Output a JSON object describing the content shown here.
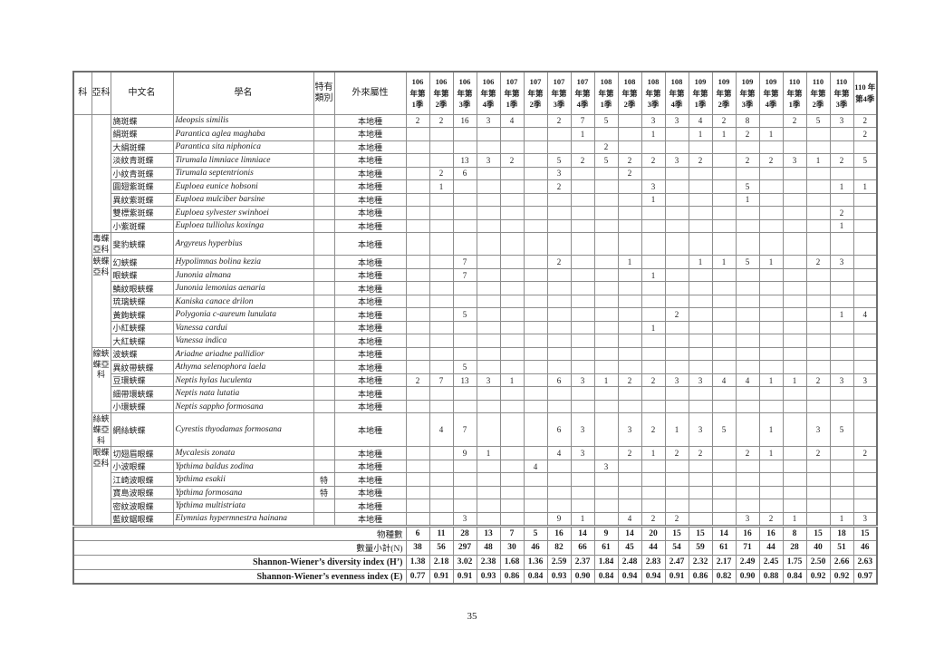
{
  "page_number": "35",
  "table": {
    "fixed_headers": [
      {
        "key": "family",
        "label": "科"
      },
      {
        "key": "subfamily",
        "label": "亞科"
      },
      {
        "key": "chinese-name",
        "label": "中文名"
      },
      {
        "key": "scientific-name",
        "label": "學名"
      },
      {
        "key": "endemic-category",
        "label": "特有\n類別"
      },
      {
        "key": "origin",
        "label": "外來屬性"
      }
    ],
    "quarter_headers": [
      "106\n年第\n1季",
      "106\n年第\n2季",
      "106\n年第\n3季",
      "106\n年第\n4季",
      "107\n年第\n1季",
      "107\n年第\n2季",
      "107\n年第\n3季",
      "107\n年第\n4季",
      "108\n年第\n1季",
      "108\n年第\n2季",
      "108\n年第\n3季",
      "108\n年第\n4季",
      "109\n年第\n1季",
      "109\n年第\n2季",
      "109\n年第\n3季",
      "109\n年第\n4季",
      "110\n年第\n1季",
      "110\n年第\n2季",
      "110\n年第\n3季",
      "110 年\n第4季"
    ],
    "family_label": "",
    "groups": [
      {
        "label": "",
        "span": 9
      },
      {
        "label": "毒蝶\n亞科",
        "span": 1
      },
      {
        "label": "蛺蝶\n亞科",
        "span": 7
      },
      {
        "label": "線蛺\n蝶亞\n科",
        "span": 5
      },
      {
        "label": "絲蛺\n蝶亞\n科",
        "span": 1
      },
      {
        "label": "眼蝶\n亞科",
        "span": 6
      }
    ],
    "species_rows": [
      {
        "cn": "旖斑蝶",
        "sci": "Ideopsis similis",
        "endemic": "",
        "origin": "本地種",
        "values": [
          "2",
          "2",
          "16",
          "3",
          "4",
          "",
          "2",
          "7",
          "5",
          "",
          "3",
          "3",
          "4",
          "2",
          "8",
          "",
          "2",
          "5",
          "3",
          "2"
        ]
      },
      {
        "cn": "絹斑蝶",
        "sci": "Parantica aglea maghaba",
        "endemic": "",
        "origin": "本地種",
        "values": [
          "",
          "",
          "",
          "",
          "",
          "",
          "",
          "1",
          "",
          "",
          "1",
          "",
          "1",
          "1",
          "2",
          "1",
          "",
          "",
          "",
          "2"
        ]
      },
      {
        "cn": "大絹斑蝶",
        "sci": "Parantica sita niphonica",
        "endemic": "",
        "origin": "本地種",
        "values": [
          "",
          "",
          "",
          "",
          "",
          "",
          "",
          "",
          "2",
          "",
          "",
          "",
          "",
          "",
          "",
          "",
          "",
          "",
          "",
          ""
        ]
      },
      {
        "cn": "淡紋青斑蝶",
        "sci": "Tirumala limniace limniace",
        "endemic": "",
        "origin": "本地種",
        "values": [
          "",
          "",
          "13",
          "3",
          "2",
          "",
          "5",
          "2",
          "5",
          "2",
          "2",
          "3",
          "2",
          "",
          "2",
          "2",
          "3",
          "1",
          "2",
          "5"
        ]
      },
      {
        "cn": "小紋青斑蝶",
        "sci": "Tirumala septentrionis",
        "endemic": "",
        "origin": "本地種",
        "values": [
          "",
          "2",
          "6",
          "",
          "",
          "",
          "3",
          "",
          "",
          "2",
          "",
          "",
          "",
          "",
          "",
          "",
          "",
          "",
          "",
          ""
        ]
      },
      {
        "cn": "圓翅紫斑蝶",
        "sci": "Euploea eunice hobsoni",
        "endemic": "",
        "origin": "本地種",
        "values": [
          "",
          "1",
          "",
          "",
          "",
          "",
          "2",
          "",
          "",
          "",
          "3",
          "",
          "",
          "",
          "5",
          "",
          "",
          "",
          "1",
          "1"
        ]
      },
      {
        "cn": "異紋紫斑蝶",
        "sci": "Euploea mulciber barsine",
        "endemic": "",
        "origin": "本地種",
        "values": [
          "",
          "",
          "",
          "",
          "",
          "",
          "",
          "",
          "",
          "",
          "1",
          "",
          "",
          "",
          "1",
          "",
          "",
          "",
          "",
          ""
        ]
      },
      {
        "cn": "雙標紫斑蝶",
        "sci": "Euploea sylvester swinhoei",
        "endemic": "",
        "origin": "本地種",
        "values": [
          "",
          "",
          "",
          "",
          "",
          "",
          "",
          "",
          "",
          "",
          "",
          "",
          "",
          "",
          "",
          "",
          "",
          "",
          "2",
          ""
        ]
      },
      {
        "cn": "小紫斑蝶",
        "sci": "Euploea tulliolus koxinga",
        "endemic": "",
        "origin": "本地種",
        "values": [
          "",
          "",
          "",
          "",
          "",
          "",
          "",
          "",
          "",
          "",
          "",
          "",
          "",
          "",
          "",
          "",
          "",
          "",
          "1",
          ""
        ]
      },
      {
        "cn": "斐豹蛺蝶",
        "sci": "Argyreus hyperbius",
        "endemic": "",
        "origin": "本地種",
        "values": [
          "",
          "",
          "",
          "",
          "",
          "",
          "",
          "",
          "",
          "",
          "",
          "",
          "",
          "",
          "",
          "",
          "",
          "",
          "",
          ""
        ]
      },
      {
        "cn": "幻蛺蝶",
        "sci": "Hypolimnas bolina kezia",
        "endemic": "",
        "origin": "本地種",
        "values": [
          "",
          "",
          "7",
          "",
          "",
          "",
          "2",
          "",
          "",
          "1",
          "",
          "",
          "1",
          "1",
          "5",
          "1",
          "",
          "2",
          "3",
          ""
        ]
      },
      {
        "cn": "眼蛺蝶",
        "sci": "Junonia almana",
        "endemic": "",
        "origin": "本地種",
        "values": [
          "",
          "",
          "7",
          "",
          "",
          "",
          "",
          "",
          "",
          "",
          "1",
          "",
          "",
          "",
          "",
          "",
          "",
          "",
          "",
          ""
        ]
      },
      {
        "cn": "鱗紋眼蛺蝶",
        "sci": "Junonia lemonias aenaria",
        "endemic": "",
        "origin": "本地種",
        "values": [
          "",
          "",
          "",
          "",
          "",
          "",
          "",
          "",
          "",
          "",
          "",
          "",
          "",
          "",
          "",
          "",
          "",
          "",
          "",
          ""
        ]
      },
      {
        "cn": "琉璃蛺蝶",
        "sci": "Kaniska canace drilon",
        "endemic": "",
        "origin": "本地種",
        "values": [
          "",
          "",
          "",
          "",
          "",
          "",
          "",
          "",
          "",
          "",
          "",
          "",
          "",
          "",
          "",
          "",
          "",
          "",
          "",
          ""
        ]
      },
      {
        "cn": "黃鉤蛺蝶",
        "sci": "Polygonia c-aureum lunulata",
        "endemic": "",
        "origin": "本地種",
        "values": [
          "",
          "",
          "5",
          "",
          "",
          "",
          "",
          "",
          "",
          "",
          "",
          "2",
          "",
          "",
          "",
          "",
          "",
          "",
          "1",
          "4"
        ]
      },
      {
        "cn": "小紅蛺蝶",
        "sci": "Vanessa cardui",
        "endemic": "",
        "origin": "本地種",
        "values": [
          "",
          "",
          "",
          "",
          "",
          "",
          "",
          "",
          "",
          "",
          "1",
          "",
          "",
          "",
          "",
          "",
          "",
          "",
          "",
          ""
        ]
      },
      {
        "cn": "大紅蛺蝶",
        "sci": "Vanessa indica",
        "endemic": "",
        "origin": "本地種",
        "values": [
          "",
          "",
          "",
          "",
          "",
          "",
          "",
          "",
          "",
          "",
          "",
          "",
          "",
          "",
          "",
          "",
          "",
          "",
          "",
          ""
        ]
      },
      {
        "cn": "波蛺蝶",
        "sci": "Ariadne ariadne pallidior",
        "endemic": "",
        "origin": "本地種",
        "values": [
          "",
          "",
          "",
          "",
          "",
          "",
          "",
          "",
          "",
          "",
          "",
          "",
          "",
          "",
          "",
          "",
          "",
          "",
          "",
          ""
        ]
      },
      {
        "cn": "異紋帶蛺蝶",
        "sci": "Athyma selenophora laela",
        "endemic": "",
        "origin": "本地種",
        "values": [
          "",
          "",
          "5",
          "",
          "",
          "",
          "",
          "",
          "",
          "",
          "",
          "",
          "",
          "",
          "",
          "",
          "",
          "",
          "",
          ""
        ]
      },
      {
        "cn": "豆環蛺蝶",
        "sci": "Neptis hylas luculenta",
        "endemic": "",
        "origin": "本地種",
        "values": [
          "2",
          "7",
          "13",
          "3",
          "1",
          "",
          "6",
          "3",
          "1",
          "2",
          "2",
          "3",
          "3",
          "4",
          "4",
          "1",
          "1",
          "2",
          "3",
          "3"
        ]
      },
      {
        "cn": "細帶環蛺蝶",
        "sci": "Neptis nata lutatia",
        "endemic": "",
        "origin": "本地種",
        "values": [
          "",
          "",
          "",
          "",
          "",
          "",
          "",
          "",
          "",
          "",
          "",
          "",
          "",
          "",
          "",
          "",
          "",
          "",
          "",
          ""
        ]
      },
      {
        "cn": "小環蛺蝶",
        "sci": "Neptis sappho formosana",
        "endemic": "",
        "origin": "本地種",
        "values": [
          "",
          "",
          "",
          "",
          "",
          "",
          "",
          "",
          "",
          "",
          "",
          "",
          "",
          "",
          "",
          "",
          "",
          "",
          "",
          ""
        ]
      },
      {
        "cn": "網絲蛺蝶",
        "sci": "Cyrestis thyodamas formosana",
        "endemic": "",
        "origin": "本地種",
        "values": [
          "",
          "4",
          "7",
          "",
          "",
          "",
          "6",
          "3",
          "",
          "3",
          "2",
          "1",
          "3",
          "5",
          "",
          "1",
          "",
          "3",
          "5",
          ""
        ]
      },
      {
        "cn": "切翅眉眼蝶",
        "sci": "Mycalesis zonata",
        "endemic": "",
        "origin": "本地種",
        "values": [
          "",
          "",
          "9",
          "1",
          "",
          "",
          "4",
          "3",
          "",
          "2",
          "1",
          "2",
          "2",
          "",
          "2",
          "1",
          "",
          "2",
          "",
          "2"
        ]
      },
      {
        "cn": "小波眼蝶",
        "sci": "Ypthima baldus zodina",
        "endemic": "",
        "origin": "本地種",
        "values": [
          "",
          "",
          "",
          "",
          "",
          "4",
          "",
          "",
          "3",
          "",
          "",
          "",
          "",
          "",
          "",
          "",
          "",
          "",
          "",
          ""
        ]
      },
      {
        "cn": "江崎波眼蝶",
        "sci": "Ypthima esakii",
        "endemic": "特",
        "origin": "本地種",
        "values": [
          "",
          "",
          "",
          "",
          "",
          "",
          "",
          "",
          "",
          "",
          "",
          "",
          "",
          "",
          "",
          "",
          "",
          "",
          "",
          ""
        ]
      },
      {
        "cn": "寶島波眼蝶",
        "sci": "Ypthima formosana",
        "endemic": "特",
        "origin": "本地種",
        "values": [
          "",
          "",
          "",
          "",
          "",
          "",
          "",
          "",
          "",
          "",
          "",
          "",
          "",
          "",
          "",
          "",
          "",
          "",
          "",
          ""
        ]
      },
      {
        "cn": "密紋波眼蝶",
        "sci": "Ypthima multistriata",
        "endemic": "",
        "origin": "本地種",
        "values": [
          "",
          "",
          "",
          "",
          "",
          "",
          "",
          "",
          "",
          "",
          "",
          "",
          "",
          "",
          "",
          "",
          "",
          "",
          "",
          ""
        ]
      },
      {
        "cn": "藍紋鋸眼蝶",
        "sci": "Elymnias hypermnestra hainana",
        "endemic": "",
        "origin": "本地種",
        "values": [
          "",
          "",
          "3",
          "",
          "",
          "",
          "9",
          "1",
          "",
          "4",
          "2",
          "2",
          "",
          "",
          "3",
          "2",
          "1",
          "",
          "1",
          "3"
        ]
      }
    ],
    "summary_rows": [
      {
        "label": "物種數",
        "values": [
          "6",
          "11",
          "28",
          "13",
          "7",
          "5",
          "16",
          "14",
          "9",
          "14",
          "20",
          "15",
          "15",
          "14",
          "16",
          "16",
          "8",
          "15",
          "18",
          "15"
        ]
      },
      {
        "label": "數量小計(N)",
        "values": [
          "38",
          "56",
          "297",
          "48",
          "30",
          "46",
          "82",
          "66",
          "61",
          "45",
          "44",
          "54",
          "59",
          "61",
          "71",
          "44",
          "28",
          "40",
          "51",
          "46"
        ]
      },
      {
        "label": "Shannon-Wiener’s diversity index (H’)",
        "values": [
          "1.38",
          "2.18",
          "3.02",
          "2.38",
          "1.68",
          "1.36",
          "2.59",
          "2.37",
          "1.84",
          "2.48",
          "2.83",
          "2.47",
          "2.32",
          "2.17",
          "2.49",
          "2.45",
          "1.75",
          "2.50",
          "2.66",
          "2.63"
        ]
      },
      {
        "label": "Shannon-Wiener’s evenness index (E)",
        "values": [
          "0.77",
          "0.91",
          "0.91",
          "0.93",
          "0.86",
          "0.84",
          "0.93",
          "0.90",
          "0.84",
          "0.94",
          "0.94",
          "0.91",
          "0.86",
          "0.82",
          "0.90",
          "0.88",
          "0.84",
          "0.92",
          "0.92",
          "0.97"
        ]
      }
    ]
  }
}
